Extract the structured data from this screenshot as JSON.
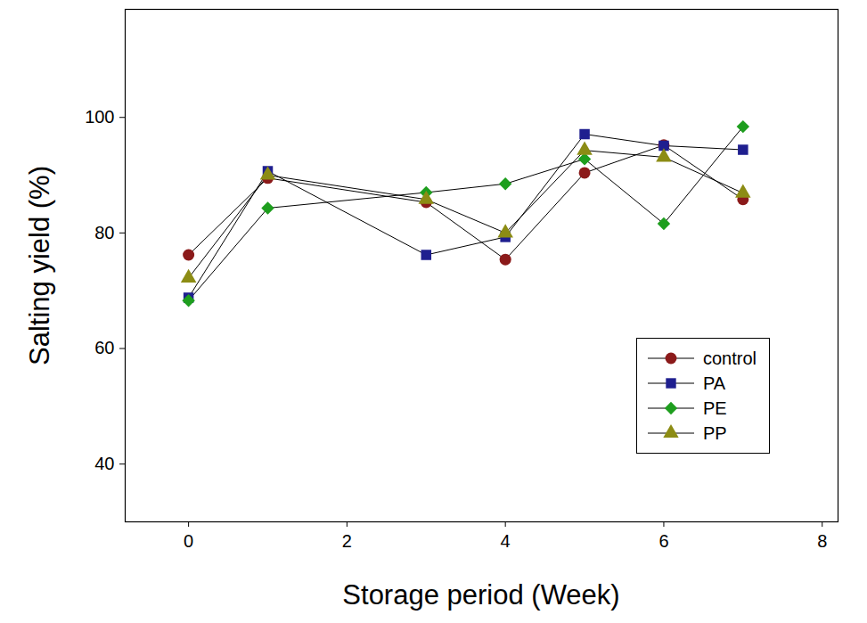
{
  "chart_data": {
    "type": "line",
    "x_label": "Storage period (Week)",
    "y_label": "Salting yield (%)",
    "x": [
      0,
      1,
      3,
      4,
      5,
      6,
      7
    ],
    "series": [
      {
        "name": "control",
        "color": "#8b1a1a",
        "marker": "circle",
        "values": [
          76.2,
          89.5,
          85.3,
          75.4,
          90.4,
          95.2,
          85.8
        ]
      },
      {
        "name": "PA",
        "color": "#1f1f8f",
        "marker": "square",
        "values": [
          68.8,
          90.7,
          76.2,
          79.3,
          97.1,
          95.1,
          94.4
        ]
      },
      {
        "name": "PE",
        "color": "#1e9e1e",
        "marker": "diamond",
        "values": [
          68.3,
          84.3,
          87.0,
          88.5,
          92.8,
          81.6,
          98.4
        ]
      },
      {
        "name": "PP",
        "color": "#8c8c14",
        "marker": "triangle",
        "values": [
          72.2,
          90.0,
          85.8,
          80.0,
          94.3,
          93.1,
          86.9
        ]
      }
    ],
    "xlim": [
      -0.8,
      8.2
    ],
    "xticks": [
      0,
      2,
      4,
      6,
      8
    ],
    "ylim": [
      30,
      118.7
    ],
    "yticks": [
      40,
      60,
      80,
      100
    ],
    "grid": false,
    "legend": "lower right"
  }
}
